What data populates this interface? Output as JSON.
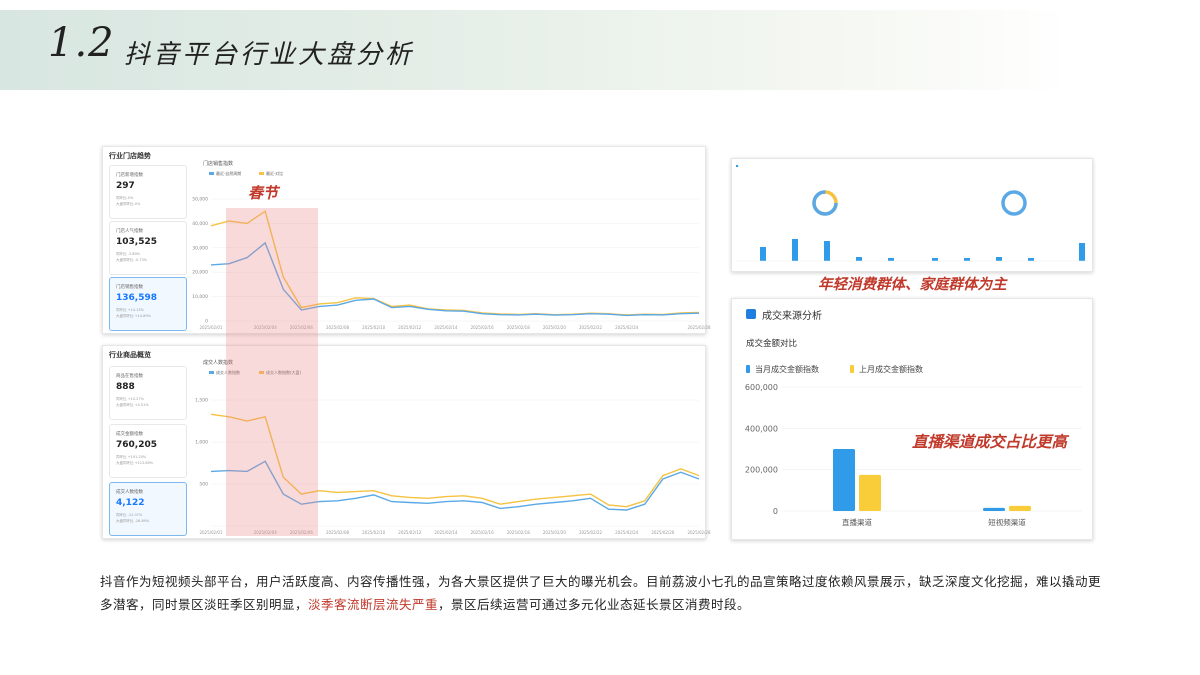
{
  "header": {
    "number": "1.2",
    "title": "抖音平台行业大盘分析"
  },
  "store_panel": {
    "title": "行业门店趋势",
    "cards": [
      {
        "label": "门店新增指数",
        "value": "297",
        "cmp1": "同环比-0%",
        "cmp2": "大盘同环比-0%",
        "dir": "",
        "active": false
      },
      {
        "label": "门店人气指数",
        "value": "103,525",
        "cmp1": "同环比 -3.89%",
        "cmp2": "大盘同环比 -0.73%",
        "dir": "down",
        "active": false
      },
      {
        "label": "门店销售指数",
        "value": "136,598",
        "cmp1": "同环比 +14.13%",
        "cmp2": "大盘同环比 +14.89%",
        "dir": "up",
        "active": true
      }
    ],
    "chart_title": "门店销售指数"
  },
  "goods_panel": {
    "title": "行业商品概览",
    "cards": [
      {
        "label": "商品在售指数",
        "value": "888",
        "cmp1": "同环比 +10.27%",
        "cmp2": "大盘同环比 +4.51%",
        "dir": "up",
        "active": false
      },
      {
        "label": "成交金额指数",
        "value": "760,205",
        "cmp1": "同环比 +191.20%",
        "cmp2": "大盘同环比 +113.80%",
        "dir": "up",
        "active": false
      },
      {
        "label": "成交人数指数",
        "value": "4,122",
        "cmp1": "同环比 -12.07%",
        "cmp2": "大盘同环比 -26.89%",
        "dir": "down",
        "active": true
      }
    ],
    "chart_title": "成交人数指数"
  },
  "annotations": {
    "spring": "春节",
    "demographic": "年轻消费群体、家庭群体为主",
    "channel": "直播渠道成交占比更高"
  },
  "source_panel": {
    "title": "成交来源分析",
    "subtitle": "成交金额对比"
  },
  "caption": {
    "part1": "抖音作为短视频头部平台，用户活跃度高、内容传播性强，为各大景区提供了巨大的曝光机会。目前荔波小七孔的品宣策略过度依赖风景展示，缺乏深度文化挖掘，难以撬动更多潜客，同时景区淡旺季区别明显，",
    "highlight": "淡季客流断层流失严重",
    "part2": "，景区后续运营可通过多元化业态延长景区消费时段。"
  },
  "colors": {
    "blue": "#5aa9e6",
    "yellow": "#f5c242",
    "bar_blue": "#2f9be9",
    "bar_yellow": "#f9cd3a",
    "highlight": "#f4c7c7",
    "red": "#c0392b"
  },
  "chart_data": [
    {
      "type": "line",
      "title": "门店销售指数",
      "x": [
        "2025/02/01",
        "2025/02/02",
        "2025/02/03",
        "2025/02/04",
        "2025/02/05",
        "2025/02/06",
        "2025/02/07",
        "2025/02/08",
        "2025/02/09",
        "2025/02/10",
        "2025/02/11",
        "2025/02/12",
        "2025/02/13",
        "2025/02/14",
        "2025/02/15",
        "2025/02/16",
        "2025/02/17",
        "2025/02/18",
        "2025/02/19",
        "2025/02/20",
        "2025/02/21",
        "2025/02/22",
        "2025/02/23",
        "2025/02/24",
        "2025/02/25",
        "2025/02/26",
        "2025/02/27",
        "2025/02/28"
      ],
      "tick_labels": [
        "2025/02/01",
        "2025/02/04",
        "2025/02/06",
        "2025/02/08",
        "2025/02/10",
        "2025/02/12",
        "2025/02/14",
        "2025/02/16",
        "2025/02/18",
        "2025/02/20",
        "2025/02/22",
        "2025/02/24",
        "2025/02/28"
      ],
      "ylim": [
        0,
        50000
      ],
      "yticks": [
        "0",
        "10,000",
        "20,000",
        "30,000",
        "40,000",
        "50,000"
      ],
      "series": [
        {
          "name": "最近·自然周期",
          "color": "#5aa9e6",
          "values": [
            23000,
            23500,
            26000,
            32000,
            13000,
            4500,
            6000,
            6500,
            8500,
            9000,
            5500,
            6000,
            4800,
            4200,
            4000,
            3000,
            2600,
            2500,
            2800,
            2400,
            2600,
            3000,
            2800,
            2300,
            2600,
            2500,
            3000,
            3200
          ]
        },
        {
          "name": "最近·对比",
          "color": "#f5c242",
          "values": [
            39000,
            41000,
            40000,
            45000,
            18000,
            5500,
            7000,
            7500,
            9500,
            9200,
            6000,
            6500,
            5000,
            4500,
            4300,
            3300,
            2900,
            2700,
            3000,
            2600,
            2800,
            3200,
            3000,
            2500,
            2800,
            2700,
            3300,
            3500
          ]
        }
      ]
    },
    {
      "type": "line",
      "title": "成交人数指数",
      "x": [
        "2025/02/01",
        "2025/02/02",
        "2025/02/03",
        "2025/02/04",
        "2025/02/05",
        "2025/02/06",
        "2025/02/07",
        "2025/02/08",
        "2025/02/09",
        "2025/02/10",
        "2025/02/11",
        "2025/02/12",
        "2025/02/13",
        "2025/02/14",
        "2025/02/15",
        "2025/02/16",
        "2025/02/17",
        "2025/02/18",
        "2025/02/19",
        "2025/02/20",
        "2025/02/21",
        "2025/02/22",
        "2025/02/23",
        "2025/02/24",
        "2025/02/25",
        "2025/02/26",
        "2025/02/27",
        "2025/02/28"
      ],
      "tick_labels": [
        "2025/02/01",
        "2025/02/04",
        "2025/02/06",
        "2025/02/08",
        "2025/02/10",
        "2025/02/12",
        "2025/02/14",
        "2025/02/16",
        "2025/02/18",
        "2025/02/20",
        "2025/02/22",
        "2025/02/24",
        "2025/02/26",
        "2025/02/28"
      ],
      "ylim": [
        0,
        1500
      ],
      "yticks": [
        "",
        "500",
        "1,000",
        "1,500"
      ],
      "series": [
        {
          "name": "成交人数指数",
          "color": "#5aa9e6",
          "values": [
            650,
            660,
            650,
            770,
            380,
            260,
            290,
            300,
            330,
            370,
            290,
            280,
            270,
            290,
            300,
            280,
            210,
            230,
            260,
            280,
            300,
            330,
            200,
            190,
            260,
            560,
            640,
            560
          ]
        },
        {
          "name": "成交人数指数(大盘)",
          "color": "#f5c242",
          "values": [
            1330,
            1300,
            1250,
            1300,
            580,
            380,
            420,
            400,
            410,
            420,
            360,
            340,
            330,
            350,
            360,
            330,
            260,
            290,
            320,
            340,
            360,
            380,
            250,
            230,
            300,
            600,
            680,
            600
          ]
        }
      ]
    },
    {
      "type": "bar",
      "title": "成交金额对比",
      "categories": [
        "直播渠道",
        "短视频渠道"
      ],
      "series": [
        {
          "name": "当月成交金额指数",
          "color": "#2f9be9",
          "values": [
            300000,
            15000
          ]
        },
        {
          "name": "上月成交金额指数",
          "color": "#f9cd3a",
          "values": [
            175000,
            25000
          ]
        }
      ],
      "ylim": [
        0,
        600000
      ],
      "yticks": [
        "0",
        "200,000",
        "400,000",
        "600,000"
      ]
    }
  ]
}
